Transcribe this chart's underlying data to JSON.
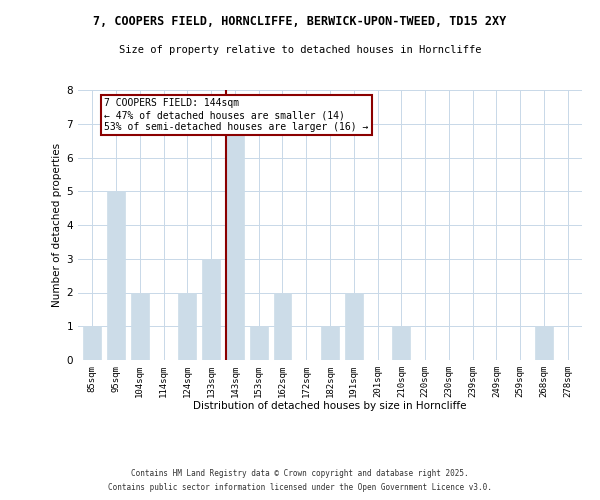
{
  "title1": "7, COOPERS FIELD, HORNCLIFFE, BERWICK-UPON-TWEED, TD15 2XY",
  "title2": "Size of property relative to detached houses in Horncliffe",
  "xlabel": "Distribution of detached houses by size in Horncliffe",
  "ylabel": "Number of detached properties",
  "bar_labels": [
    "85sqm",
    "95sqm",
    "104sqm",
    "114sqm",
    "124sqm",
    "133sqm",
    "143sqm",
    "153sqm",
    "162sqm",
    "172sqm",
    "182sqm",
    "191sqm",
    "201sqm",
    "210sqm",
    "220sqm",
    "230sqm",
    "239sqm",
    "249sqm",
    "259sqm",
    "268sqm",
    "278sqm"
  ],
  "bar_values": [
    1,
    5,
    2,
    0,
    2,
    3,
    7,
    1,
    2,
    0,
    1,
    2,
    0,
    1,
    0,
    0,
    0,
    0,
    0,
    1,
    0
  ],
  "highlight_index": 6,
  "bar_color": "#ccdce8",
  "highlight_line_color": "#8b0000",
  "annotation_text": "7 COOPERS FIELD: 144sqm\n← 47% of detached houses are smaller (14)\n53% of semi-detached houses are larger (16) →",
  "annotation_box_color": "#ffffff",
  "annotation_box_edgecolor": "#8b0000",
  "footer1": "Contains HM Land Registry data © Crown copyright and database right 2025.",
  "footer2": "Contains public sector information licensed under the Open Government Licence v3.0.",
  "ylim": [
    0,
    8
  ],
  "background_color": "#ffffff",
  "grid_color": "#c8d8e8"
}
